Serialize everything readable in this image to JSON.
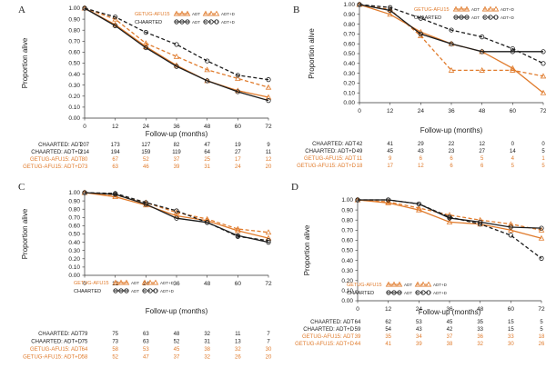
{
  "colors": {
    "chaarted": "#1c1c1c",
    "getug": "#e07b2c"
  },
  "chart_data": [
    {
      "type": "line",
      "letter": "A",
      "xlabel": "Follow-up (months)",
      "ylabel": "Proportion alive",
      "x": [
        0,
        12,
        24,
        36,
        48,
        60,
        72
      ],
      "xlim": [
        0,
        72
      ],
      "ylim": [
        0,
        1
      ],
      "yticks": [
        "0.00",
        "0.10",
        "0.20",
        "0.30",
        "0.40",
        "0.50",
        "0.60",
        "0.70",
        "0.80",
        "0.90",
        "1.00"
      ],
      "legend": {
        "position": "top-right",
        "entries": [
          {
            "label": "GETUG-AFU15",
            "group": "getug"
          },
          {
            "label": "CHAARTED",
            "group": "chaarted"
          }
        ],
        "adt": "ADT",
        "adtd": "ADT+D"
      },
      "series": [
        {
          "group": "getug",
          "arm": "ADT+D",
          "dashed": true,
          "values": [
            1.0,
            0.9,
            0.68,
            0.56,
            0.44,
            0.36,
            0.28
          ]
        },
        {
          "group": "getug",
          "arm": "ADT",
          "dashed": false,
          "values": [
            1.0,
            0.85,
            0.65,
            0.48,
            0.34,
            0.25,
            0.19
          ]
        },
        {
          "group": "chaarted",
          "arm": "ADT+D",
          "dashed": true,
          "values": [
            1.0,
            0.92,
            0.78,
            0.67,
            0.52,
            0.39,
            0.35
          ]
        },
        {
          "group": "chaarted",
          "arm": "ADT",
          "dashed": false,
          "values": [
            1.0,
            0.84,
            0.64,
            0.47,
            0.34,
            0.24,
            0.16
          ]
        }
      ],
      "risk": [
        {
          "label": "CHAARTED: ADT",
          "group": "chaarted",
          "values": [
            "207",
            "173",
            "127",
            "82",
            "47",
            "19",
            "9"
          ]
        },
        {
          "label": "CHAARTED: ADT+D",
          "group": "chaarted",
          "values": [
            "214",
            "194",
            "159",
            "119",
            "64",
            "27",
            "11"
          ]
        },
        {
          "label": "GETUG-AFU15: ADT",
          "group": "getug",
          "values": [
            "80",
            "67",
            "52",
            "37",
            "25",
            "17",
            "12"
          ]
        },
        {
          "label": "GETUG-AFU15: ADT+D",
          "group": "getug",
          "values": [
            "73",
            "63",
            "46",
            "39",
            "31",
            "24",
            "20"
          ]
        }
      ]
    },
    {
      "type": "line",
      "letter": "B",
      "xlabel": "Follow-up (months)",
      "ylabel": "Proportion alive",
      "x": [
        0,
        12,
        24,
        36,
        48,
        60,
        72
      ],
      "xlim": [
        0,
        72
      ],
      "ylim": [
        0,
        1
      ],
      "yticks": [
        "0.00",
        "0.10",
        "0.20",
        "0.30",
        "0.40",
        "0.50",
        "0.60",
        "0.70",
        "0.80",
        "0.90",
        "1.00"
      ],
      "legend": {
        "position": "top-center",
        "entries": [
          {
            "label": "GETUG-AFU15",
            "group": "getug"
          },
          {
            "label": "CHAARTED",
            "group": "chaarted"
          }
        ],
        "adt": "ADT",
        "adtd": "ADT+D"
      },
      "series": [
        {
          "group": "getug",
          "arm": "ADT+D",
          "dashed": true,
          "values": [
            1.0,
            0.95,
            0.68,
            0.33,
            0.33,
            0.33,
            0.27
          ]
        },
        {
          "group": "getug",
          "arm": "ADT",
          "dashed": false,
          "values": [
            1.0,
            0.9,
            0.72,
            0.6,
            0.52,
            0.35,
            0.1
          ]
        },
        {
          "group": "chaarted",
          "arm": "ADT+D",
          "dashed": true,
          "values": [
            1.0,
            0.97,
            0.86,
            0.74,
            0.67,
            0.55,
            0.4
          ]
        },
        {
          "group": "chaarted",
          "arm": "ADT",
          "dashed": false,
          "values": [
            1.0,
            0.94,
            0.7,
            0.6,
            0.52,
            0.52,
            0.52
          ]
        }
      ],
      "risk": [
        {
          "label": "CHAARTED: ADT",
          "group": "chaarted",
          "values": [
            "42",
            "41",
            "29",
            "22",
            "12",
            "0",
            "0"
          ]
        },
        {
          "label": "CHAARTED: ADT+D",
          "group": "chaarted",
          "values": [
            "49",
            "45",
            "43",
            "23",
            "27",
            "14",
            "5"
          ]
        },
        {
          "label": "GETUG-AFU15: ADT",
          "group": "getug",
          "values": [
            "11",
            "9",
            "6",
            "6",
            "5",
            "4",
            "1"
          ]
        },
        {
          "label": "GETUG-AFU15: ADT+D",
          "group": "getug",
          "values": [
            "18",
            "17",
            "12",
            "6",
            "6",
            "5",
            "5"
          ]
        }
      ]
    },
    {
      "type": "line",
      "letter": "C",
      "xlabel": "Follow-up (months)",
      "ylabel": "Proportion alive",
      "x": [
        0,
        12,
        24,
        36,
        48,
        60,
        72
      ],
      "xlim": [
        0,
        72
      ],
      "ylim": [
        0,
        1
      ],
      "yticks": [
        "0.00",
        "0.10",
        "0.20",
        "0.30",
        "0.40",
        "0.50",
        "0.60",
        "0.70",
        "0.80",
        "0.90",
        "1.00"
      ],
      "legend": {
        "position": "bottom-left",
        "entries": [
          {
            "label": "GETUG-AFU15",
            "group": "getug"
          },
          {
            "label": "CHAARTED",
            "group": "chaarted"
          }
        ],
        "adt": "ADT",
        "adtd": "ADT+D"
      },
      "series": [
        {
          "group": "getug",
          "arm": "ADT+D",
          "dashed": true,
          "values": [
            1.0,
            0.97,
            0.88,
            0.76,
            0.68,
            0.56,
            0.52
          ]
        },
        {
          "group": "getug",
          "arm": "ADT",
          "dashed": false,
          "values": [
            1.0,
            0.95,
            0.85,
            0.72,
            0.66,
            0.54,
            0.45
          ]
        },
        {
          "group": "chaarted",
          "arm": "ADT+D",
          "dashed": true,
          "values": [
            1.0,
            0.99,
            0.88,
            0.78,
            0.64,
            0.47,
            0.42
          ]
        },
        {
          "group": "chaarted",
          "arm": "ADT",
          "dashed": false,
          "values": [
            1.0,
            0.98,
            0.86,
            0.69,
            0.64,
            0.48,
            0.4
          ]
        }
      ],
      "risk": [
        {
          "label": "CHAARTED: ADT",
          "group": "chaarted",
          "values": [
            "79",
            "75",
            "63",
            "48",
            "32",
            "11",
            "7"
          ]
        },
        {
          "label": "CHAARTED: ADT+D",
          "group": "chaarted",
          "values": [
            "75",
            "73",
            "63",
            "52",
            "31",
            "13",
            "7"
          ]
        },
        {
          "label": "GETUG-AFU15: ADT",
          "group": "getug",
          "values": [
            "64",
            "58",
            "53",
            "45",
            "38",
            "32",
            "30"
          ]
        },
        {
          "label": "GETUG-AFU15: ADT+D",
          "group": "getug",
          "values": [
            "58",
            "52",
            "47",
            "37",
            "32",
            "26",
            "20"
          ]
        }
      ]
    },
    {
      "type": "line",
      "letter": "D",
      "xlabel": "Follow-up (months)",
      "ylabel": "Proportion alive",
      "x": [
        0,
        12,
        24,
        36,
        48,
        60,
        72
      ],
      "xlim": [
        0,
        72
      ],
      "ylim": [
        0,
        1
      ],
      "yticks": [
        "0.00",
        "0.10",
        "0.20",
        "0.30",
        "0.40",
        "0.50",
        "0.60",
        "0.70",
        "0.80",
        "0.90",
        "1.00"
      ],
      "legend": {
        "position": "bottom-left",
        "entries": [
          {
            "label": "GETUG-AFU15",
            "group": "getug"
          },
          {
            "label": "CHAARTED",
            "group": "chaarted"
          }
        ],
        "adt": "ADT",
        "adtd": "ADT+D"
      },
      "series": [
        {
          "group": "getug",
          "arm": "ADT+D",
          "dashed": true,
          "values": [
            1.0,
            0.98,
            0.92,
            0.85,
            0.8,
            0.76,
            0.7
          ]
        },
        {
          "group": "getug",
          "arm": "ADT",
          "dashed": false,
          "values": [
            1.0,
            0.97,
            0.9,
            0.78,
            0.76,
            0.7,
            0.62
          ]
        },
        {
          "group": "chaarted",
          "arm": "ADT+D",
          "dashed": true,
          "values": [
            1.0,
            1.0,
            0.96,
            0.83,
            0.76,
            0.65,
            0.42
          ]
        },
        {
          "group": "chaarted",
          "arm": "ADT",
          "dashed": false,
          "values": [
            1.0,
            1.0,
            0.96,
            0.82,
            0.78,
            0.73,
            0.72
          ]
        }
      ],
      "risk": [
        {
          "label": "CHAARTED: ADT",
          "group": "chaarted",
          "values": [
            "64",
            "62",
            "53",
            "45",
            "35",
            "15",
            "5"
          ]
        },
        {
          "label": "CHAARTED: ADT+D",
          "group": "chaarted",
          "values": [
            "59",
            "54",
            "43",
            "42",
            "33",
            "15",
            "5"
          ]
        },
        {
          "label": "GETUG-AFU15: ADT",
          "group": "getug",
          "values": [
            "39",
            "35",
            "34",
            "37",
            "36",
            "33",
            "18"
          ]
        },
        {
          "label": "GETUG-AFU15: ADT+D",
          "group": "getug",
          "values": [
            "44",
            "41",
            "39",
            "38",
            "32",
            "30",
            "26"
          ]
        }
      ]
    }
  ]
}
